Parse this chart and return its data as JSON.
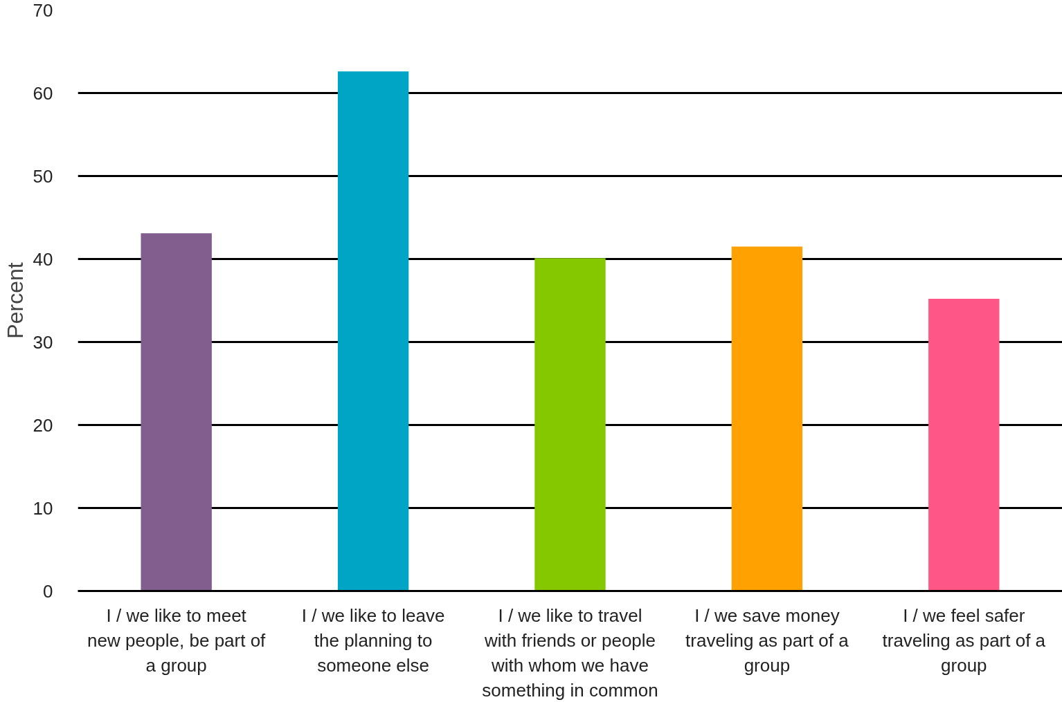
{
  "chart_data": {
    "type": "bar",
    "ylabel": "Percent",
    "categories": [
      "I / we like to meet new people, be part of a group",
      "I / we like to leave the planning to someone else",
      "I / we like to travel with friends or people with whom we have something in common",
      "I / we save money traveling as part of a group",
      "I / we feel safer traveling as part of a group"
    ],
    "values": [
      43.1,
      62.6,
      40.1,
      41.5,
      35.2
    ],
    "colors": [
      "#825e8f",
      "#00a5c6",
      "#86c800",
      "#ffa100",
      "#ff5785"
    ],
    "ylim": [
      0,
      70
    ],
    "yticks": [
      0,
      10,
      20,
      30,
      40,
      50,
      60,
      70
    ],
    "grid": "y"
  }
}
